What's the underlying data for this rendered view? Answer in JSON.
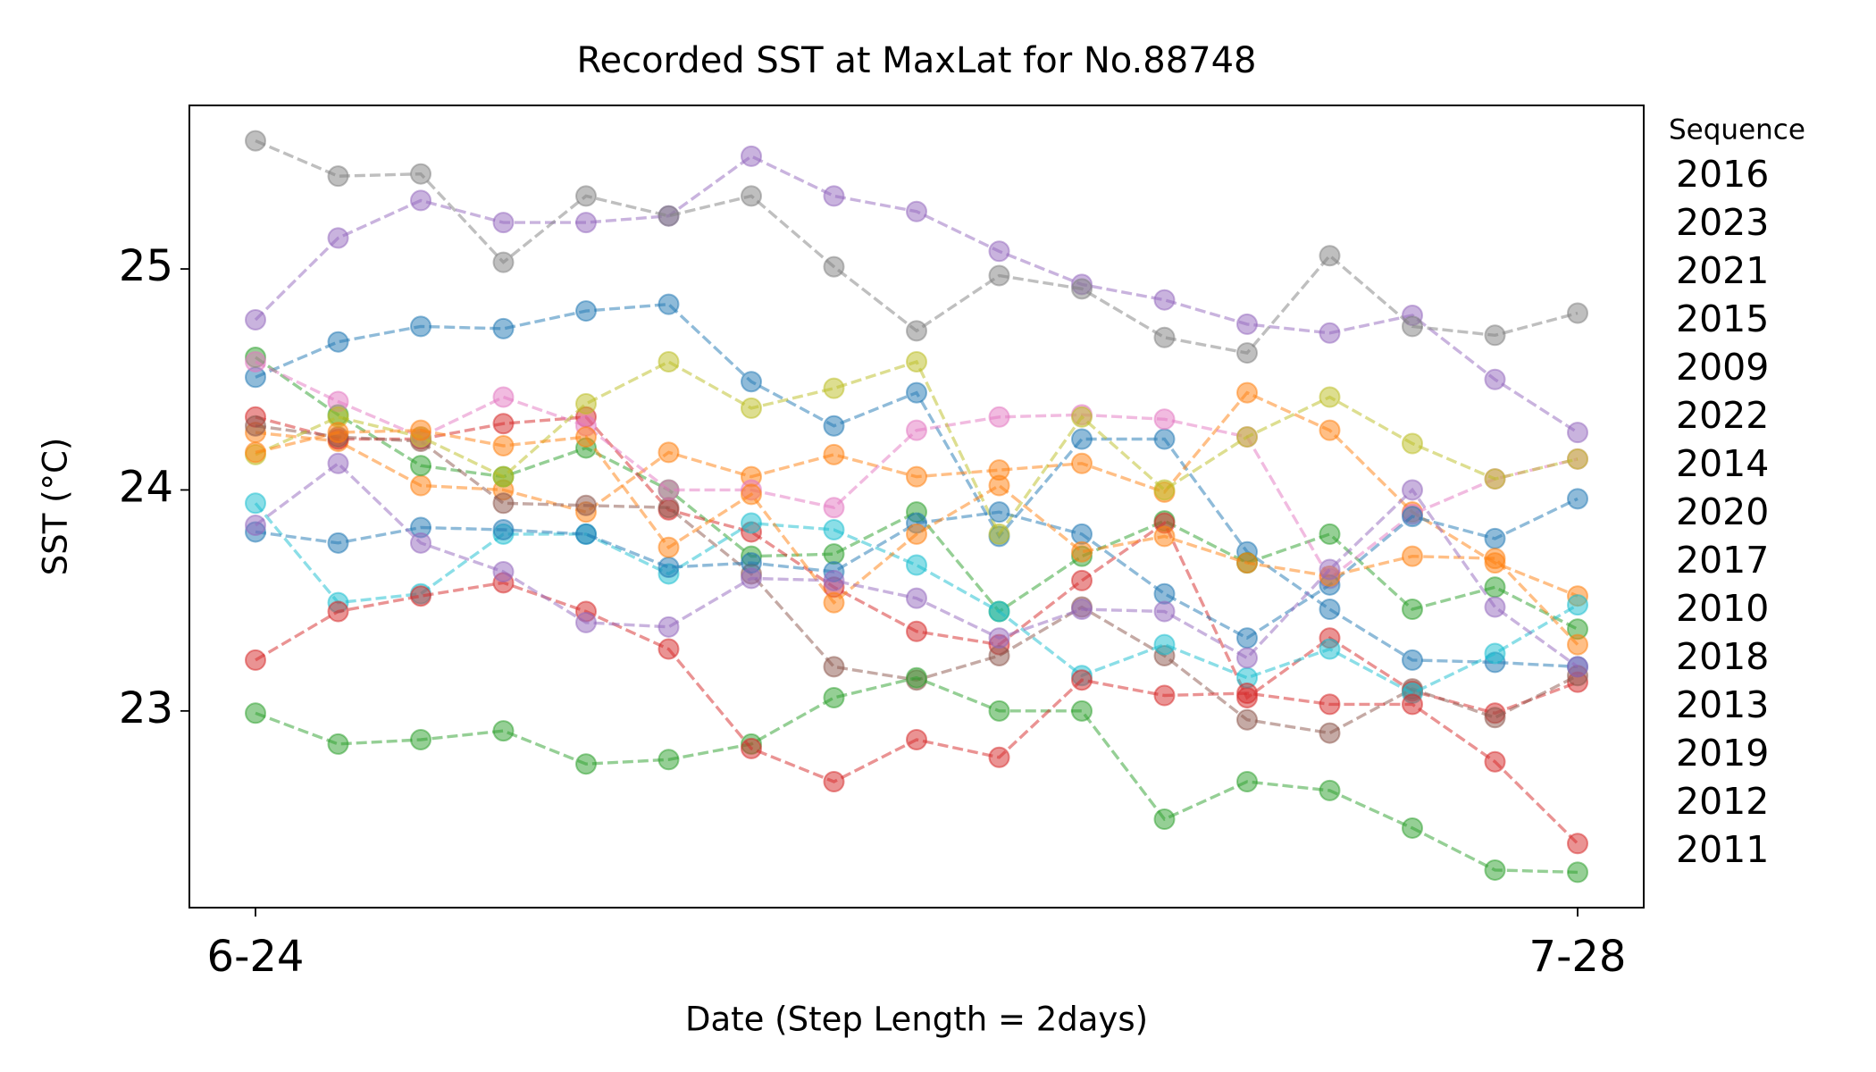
{
  "chart_data": {
    "type": "line",
    "title": "Recorded SST at MaxLat for No.88748",
    "xlabel": "Date (Step Length = 2days)",
    "ylabel": "SST (°C)",
    "legend_title": "Sequence",
    "categories": [
      "6-24",
      null,
      null,
      null,
      null,
      null,
      null,
      null,
      null,
      null,
      null,
      null,
      null,
      null,
      null,
      null,
      "7-28"
    ],
    "ylim": [
      22.11,
      25.74
    ],
    "yticks": [
      23,
      24,
      25
    ],
    "alpha": 0.5,
    "series": [
      {
        "name": "2016",
        "color": "#1f77b4",
        "values": [
          24.51,
          24.67,
          24.74,
          24.73,
          24.81,
          24.84,
          24.49,
          24.29,
          24.44,
          23.79,
          24.23,
          24.23,
          23.72,
          23.46,
          23.23,
          23.22,
          23.2
        ]
      },
      {
        "name": "2023",
        "color": "#ff7f0e",
        "values": [
          24.26,
          24.22,
          24.02,
          24.0,
          23.9,
          24.17,
          24.06,
          24.16,
          24.06,
          24.09,
          24.12,
          23.99,
          24.44,
          24.27,
          23.9,
          23.67,
          23.52
        ]
      },
      {
        "name": "2021",
        "color": "#2ca02c",
        "values": [
          24.6,
          24.34,
          24.11,
          24.06,
          24.19,
          24.0,
          23.7,
          23.71,
          23.9,
          23.45,
          23.7,
          23.86,
          23.67,
          23.8,
          23.46,
          23.56,
          23.37
        ]
      },
      {
        "name": "2015",
        "color": "#d62728",
        "values": [
          24.33,
          24.23,
          24.23,
          24.3,
          24.33,
          23.91,
          23.81,
          23.56,
          23.36,
          23.3,
          23.59,
          23.85,
          23.06,
          23.33,
          23.09,
          22.99,
          23.13
        ]
      },
      {
        "name": "2009",
        "color": "#9467bd",
        "values": [
          24.77,
          25.14,
          25.31,
          25.21,
          25.21,
          25.24,
          25.51,
          25.33,
          25.26,
          25.08,
          24.93,
          24.86,
          24.75,
          24.71,
          24.79,
          24.5,
          24.26
        ]
      },
      {
        "name": "2022",
        "color": "#8c564b",
        "values": [
          24.29,
          24.24,
          24.22,
          23.94,
          23.93,
          23.92,
          23.62,
          23.2,
          23.14,
          23.25,
          23.47,
          23.25,
          22.96,
          22.9,
          23.1,
          22.97,
          23.16
        ]
      },
      {
        "name": "2014",
        "color": "#e377c2",
        "values": [
          24.58,
          24.4,
          24.24,
          24.42,
          24.29,
          24.0,
          24.0,
          23.92,
          24.27,
          24.33,
          24.34,
          24.32,
          24.24,
          23.6,
          23.89,
          24.05,
          24.14
        ]
      },
      {
        "name": "2020",
        "color": "#7f7f7f",
        "values": [
          25.58,
          25.42,
          25.43,
          25.03,
          25.33,
          25.24,
          25.33,
          25.01,
          24.72,
          24.97,
          24.91,
          24.69,
          24.62,
          25.06,
          24.74,
          24.7,
          24.8
        ]
      },
      {
        "name": "2017",
        "color": "#bcbd22",
        "values": [
          24.16,
          24.33,
          24.24,
          24.06,
          24.39,
          24.58,
          24.37,
          24.46,
          24.58,
          23.8,
          24.33,
          24.0,
          24.24,
          24.42,
          24.21,
          24.05,
          24.14
        ]
      },
      {
        "name": "2010",
        "color": "#17becf",
        "values": [
          23.94,
          23.49,
          23.53,
          23.8,
          23.8,
          23.62,
          23.85,
          23.82,
          23.66,
          23.45,
          23.16,
          23.3,
          23.15,
          23.28,
          23.08,
          23.26,
          23.48
        ]
      },
      {
        "name": "2018",
        "color": "#1f77b4",
        "values": [
          23.81,
          23.76,
          23.83,
          23.82,
          23.8,
          23.65,
          23.67,
          23.63,
          23.85,
          23.9,
          23.8,
          23.53,
          23.33,
          23.57,
          23.88,
          23.78,
          23.96
        ]
      },
      {
        "name": "2013",
        "color": "#ff7f0e",
        "values": [
          24.17,
          24.26,
          24.27,
          24.2,
          24.24,
          23.74,
          23.98,
          23.49,
          23.8,
          24.02,
          23.72,
          23.79,
          23.67,
          23.61,
          23.7,
          23.69,
          23.3
        ]
      },
      {
        "name": "2019",
        "color": "#2ca02c",
        "values": [
          22.99,
          22.85,
          22.87,
          22.91,
          22.76,
          22.78,
          22.85,
          23.06,
          23.15,
          23.0,
          23.0,
          22.51,
          22.68,
          22.64,
          22.47,
          22.28,
          22.27
        ]
      },
      {
        "name": "2012",
        "color": "#d62728",
        "values": [
          23.23,
          23.45,
          23.52,
          23.58,
          23.45,
          23.28,
          22.83,
          22.68,
          22.87,
          22.79,
          23.14,
          23.07,
          23.08,
          23.03,
          23.03,
          22.77,
          22.4
        ]
      },
      {
        "name": "2011",
        "color": "#9467bd",
        "values": [
          23.84,
          24.12,
          23.76,
          23.63,
          23.4,
          23.38,
          23.6,
          23.59,
          23.51,
          23.33,
          23.46,
          23.45,
          23.24,
          23.64,
          24.0,
          23.47,
          23.2
        ]
      }
    ]
  }
}
